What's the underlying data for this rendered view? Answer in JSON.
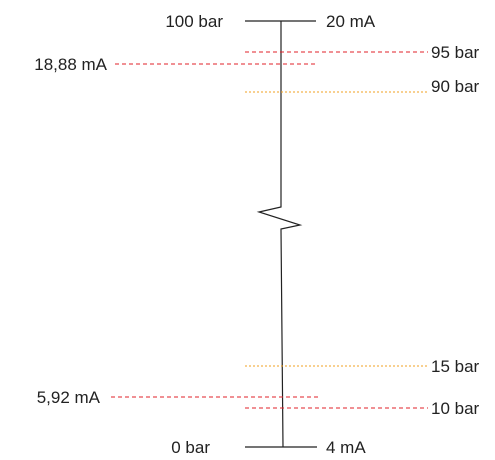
{
  "diagram": {
    "top_left_label": "100 bar",
    "top_right_label": "20 mA",
    "bottom_left_label": "0 bar",
    "bottom_right_label": "4 mA",
    "markers": [
      {
        "label": "95 bar",
        "color": "#e0202a"
      },
      {
        "label": "18,88 mA",
        "color": "#e0202a"
      },
      {
        "label": "90 bar",
        "color": "#f0a020"
      },
      {
        "label": "15 bar",
        "color": "#f0a020"
      },
      {
        "label": "5,92 mA",
        "color": "#e0202a"
      },
      {
        "label": "10 bar",
        "color": "#e0202a"
      }
    ],
    "axis_color": "#222222"
  }
}
